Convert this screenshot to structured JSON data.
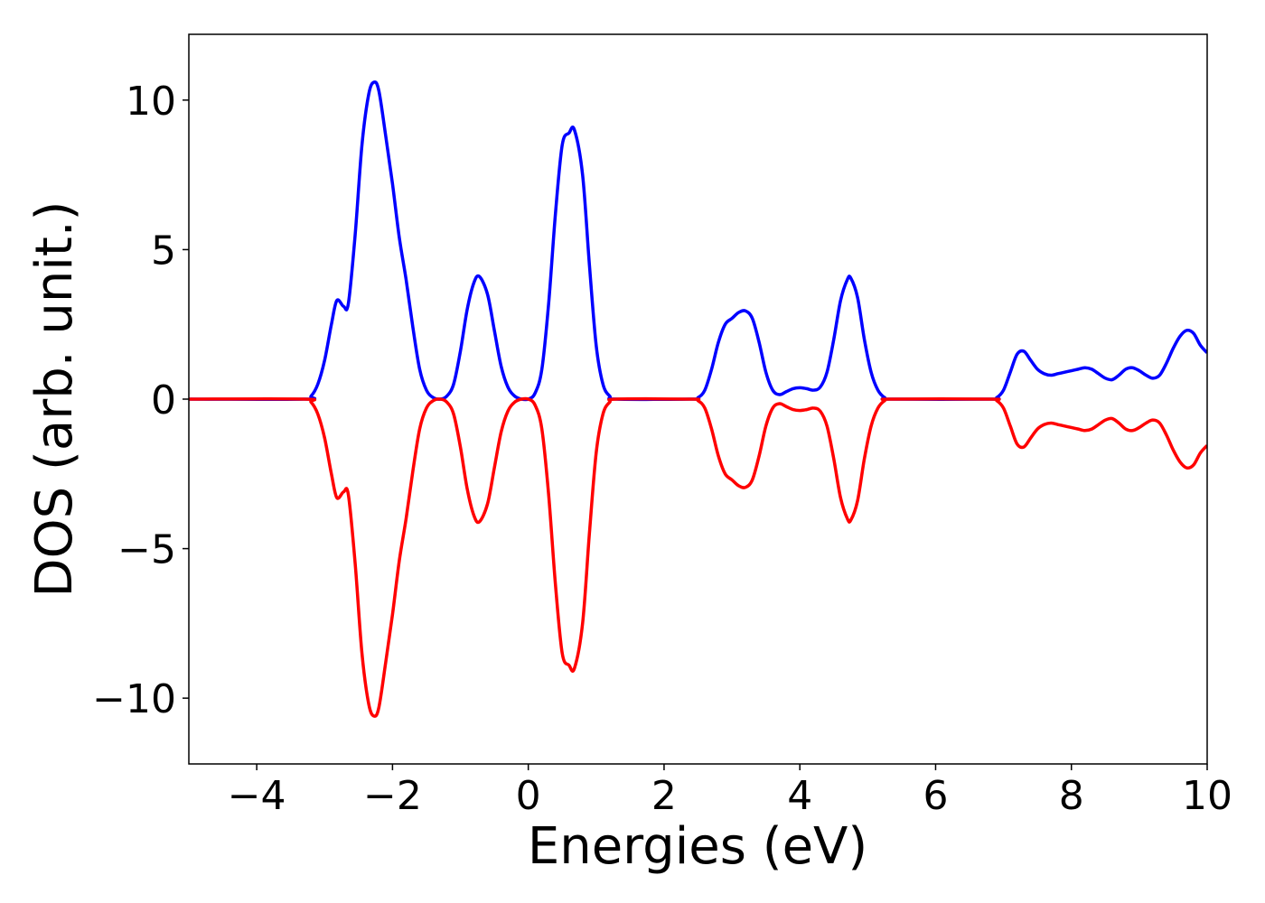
{
  "chart_data": {
    "type": "line",
    "title": "",
    "xlabel": "Energies (eV)",
    "ylabel": "DOS (arb. unit.)",
    "xlim": [
      -5,
      10
    ],
    "ylim": [
      -12.2,
      12.2
    ],
    "grid": false,
    "legend": "none",
    "x_ticks": [
      -4,
      -2,
      0,
      2,
      4,
      6,
      8,
      10
    ],
    "x_tick_labels": [
      "−4",
      "−2",
      "0",
      "2",
      "4",
      "6",
      "8",
      "10"
    ],
    "y_ticks": [
      -10,
      -5,
      0,
      5,
      10
    ],
    "y_tick_labels": [
      "−10",
      "−5",
      "0",
      "5",
      "10"
    ],
    "series": [
      {
        "color": "#0000ff",
        "x": [
          -5.0,
          -3.3,
          -3.2,
          -3.1,
          -3.0,
          -2.9,
          -2.82,
          -2.72,
          -2.65,
          -2.55,
          -2.45,
          -2.35,
          -2.27,
          -2.2,
          -2.1,
          -2.0,
          -1.9,
          -1.8,
          -1.7,
          -1.6,
          -1.5,
          -1.4,
          -1.3,
          -1.2,
          -1.1,
          -1.0,
          -0.9,
          -0.8,
          -0.72,
          -0.6,
          -0.5,
          -0.4,
          -0.3,
          -0.2,
          -0.1,
          0.0,
          0.1,
          0.2,
          0.3,
          0.4,
          0.5,
          0.6,
          0.68,
          0.8,
          0.9,
          1.0,
          1.1,
          1.2,
          1.3,
          2.4,
          2.5,
          2.6,
          2.7,
          2.8,
          2.9,
          3.0,
          3.1,
          3.2,
          3.3,
          3.4,
          3.5,
          3.6,
          3.7,
          3.8,
          3.9,
          4.0,
          4.1,
          4.2,
          4.3,
          4.4,
          4.5,
          4.6,
          4.7,
          4.75,
          4.85,
          4.95,
          5.05,
          5.15,
          5.25,
          5.35,
          6.8,
          6.9,
          7.0,
          7.1,
          7.2,
          7.3,
          7.4,
          7.5,
          7.6,
          7.7,
          7.8,
          7.9,
          8.0,
          8.1,
          8.2,
          8.3,
          8.4,
          8.5,
          8.6,
          8.7,
          8.8,
          8.9,
          9.0,
          9.1,
          9.2,
          9.3,
          9.4,
          9.5,
          9.6,
          9.7,
          9.8,
          9.9,
          10.0
        ],
        "values": [
          0.0,
          0.0,
          0.1,
          0.5,
          1.3,
          2.5,
          3.3,
          3.1,
          3.2,
          5.5,
          8.5,
          10.2,
          10.6,
          10.3,
          8.8,
          7.2,
          5.4,
          4.0,
          2.4,
          1.0,
          0.3,
          0.05,
          0.0,
          0.1,
          0.5,
          1.6,
          3.0,
          3.9,
          4.1,
          3.5,
          2.3,
          1.1,
          0.4,
          0.1,
          0.0,
          0.0,
          0.2,
          1.0,
          3.2,
          6.2,
          8.5,
          8.9,
          9.0,
          7.5,
          4.5,
          1.8,
          0.5,
          0.1,
          0.0,
          0.0,
          0.05,
          0.3,
          1.0,
          1.9,
          2.5,
          2.7,
          2.9,
          2.95,
          2.7,
          1.9,
          0.9,
          0.3,
          0.15,
          0.25,
          0.35,
          0.38,
          0.35,
          0.3,
          0.4,
          0.9,
          2.0,
          3.3,
          4.0,
          4.05,
          3.4,
          2.0,
          0.9,
          0.3,
          0.05,
          0.0,
          0.0,
          0.05,
          0.3,
          0.9,
          1.5,
          1.6,
          1.3,
          1.0,
          0.85,
          0.8,
          0.85,
          0.9,
          0.95,
          1.0,
          1.05,
          1.0,
          0.85,
          0.7,
          0.65,
          0.8,
          1.0,
          1.05,
          0.95,
          0.8,
          0.7,
          0.8,
          1.2,
          1.7,
          2.1,
          2.3,
          2.2,
          1.8,
          1.55
        ]
      },
      {
        "color": "#ff0000",
        "x": [
          -5.0,
          -3.3,
          -3.2,
          -3.1,
          -3.0,
          -2.9,
          -2.82,
          -2.72,
          -2.65,
          -2.55,
          -2.45,
          -2.35,
          -2.27,
          -2.2,
          -2.1,
          -2.0,
          -1.9,
          -1.8,
          -1.7,
          -1.6,
          -1.5,
          -1.4,
          -1.3,
          -1.2,
          -1.1,
          -1.0,
          -0.9,
          -0.8,
          -0.72,
          -0.6,
          -0.5,
          -0.4,
          -0.3,
          -0.2,
          -0.1,
          0.0,
          0.1,
          0.2,
          0.3,
          0.4,
          0.5,
          0.6,
          0.68,
          0.8,
          0.9,
          1.0,
          1.1,
          1.2,
          1.3,
          2.4,
          2.5,
          2.6,
          2.7,
          2.8,
          2.9,
          3.0,
          3.1,
          3.2,
          3.3,
          3.4,
          3.5,
          3.6,
          3.7,
          3.8,
          3.9,
          4.0,
          4.1,
          4.2,
          4.3,
          4.4,
          4.5,
          4.6,
          4.7,
          4.75,
          4.85,
          4.95,
          5.05,
          5.15,
          5.25,
          5.35,
          6.8,
          6.9,
          7.0,
          7.1,
          7.2,
          7.3,
          7.4,
          7.5,
          7.6,
          7.7,
          7.8,
          7.9,
          8.0,
          8.1,
          8.2,
          8.3,
          8.4,
          8.5,
          8.6,
          8.7,
          8.8,
          8.9,
          9.0,
          9.1,
          9.2,
          9.3,
          9.4,
          9.5,
          9.6,
          9.7,
          9.8,
          9.9,
          10.0
        ],
        "values": [
          0.0,
          0.0,
          -0.1,
          -0.5,
          -1.3,
          -2.5,
          -3.3,
          -3.1,
          -3.2,
          -5.5,
          -8.5,
          -10.2,
          -10.6,
          -10.3,
          -8.8,
          -7.2,
          -5.4,
          -4.0,
          -2.4,
          -1.0,
          -0.3,
          -0.05,
          0.0,
          -0.1,
          -0.5,
          -1.6,
          -3.0,
          -3.9,
          -4.1,
          -3.5,
          -2.3,
          -1.1,
          -0.4,
          -0.1,
          0.0,
          0.0,
          -0.2,
          -1.0,
          -3.2,
          -6.2,
          -8.5,
          -8.9,
          -9.0,
          -7.5,
          -4.5,
          -1.8,
          -0.5,
          -0.1,
          0.0,
          0.0,
          -0.05,
          -0.3,
          -1.0,
          -1.9,
          -2.5,
          -2.7,
          -2.9,
          -2.95,
          -2.7,
          -1.9,
          -0.9,
          -0.3,
          -0.15,
          -0.25,
          -0.35,
          -0.38,
          -0.35,
          -0.3,
          -0.4,
          -0.9,
          -2.0,
          -3.3,
          -4.0,
          -4.05,
          -3.4,
          -2.0,
          -0.9,
          -0.3,
          -0.05,
          0.0,
          0.0,
          -0.05,
          -0.3,
          -0.9,
          -1.5,
          -1.6,
          -1.3,
          -1.0,
          -0.85,
          -0.8,
          -0.85,
          -0.9,
          -0.95,
          -1.0,
          -1.05,
          -1.0,
          -0.85,
          -0.7,
          -0.65,
          -0.8,
          -1.0,
          -1.05,
          -0.95,
          -0.8,
          -0.7,
          -0.8,
          -1.2,
          -1.7,
          -2.1,
          -2.3,
          -2.2,
          -1.8,
          -1.55
        ]
      }
    ]
  }
}
